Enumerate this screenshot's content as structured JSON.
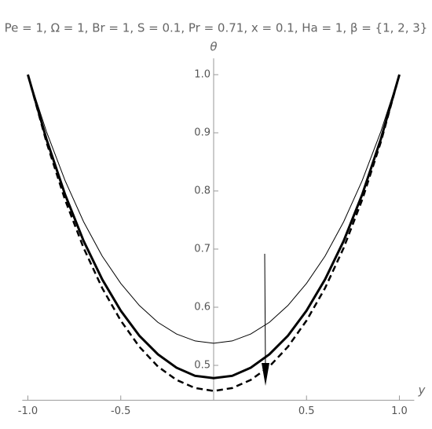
{
  "chart_data": {
    "type": "line",
    "title": "Pe = 1, Ω = 1, Br = 1, S = 0.1, Pr = 0.71, x = 0.1, Ha = 1, β = {1, 2, 3}",
    "x_label": "y",
    "y_label": "θ",
    "x": [
      -1,
      -0.9,
      -0.8,
      -0.7,
      -0.6,
      -0.5,
      -0.4,
      -0.3,
      -0.2,
      -0.1,
      0,
      0.1,
      0.2,
      0.3,
      0.4,
      0.5,
      0.6,
      0.7,
      0.8,
      0.9,
      1
    ],
    "series": [
      {
        "color": "#000000",
        "line_width": 1,
        "dash": false,
        "values": [
          1.0,
          0.902,
          0.818,
          0.747,
          0.688,
          0.641,
          0.603,
          0.574,
          0.554,
          0.542,
          0.538,
          0.542,
          0.554,
          0.574,
          0.603,
          0.641,
          0.688,
          0.747,
          0.818,
          0.902,
          1.0
        ]
      },
      {
        "color": "#000000",
        "line_width": 3,
        "dash": false,
        "values": [
          1.0,
          0.889,
          0.794,
          0.714,
          0.648,
          0.594,
          0.551,
          0.519,
          0.496,
          0.482,
          0.478,
          0.482,
          0.496,
          0.519,
          0.551,
          0.594,
          0.648,
          0.714,
          0.794,
          0.889,
          1.0
        ]
      },
      {
        "color": "#000000",
        "line_width": 2.5,
        "dash": true,
        "values": [
          1.0,
          0.884,
          0.785,
          0.702,
          0.633,
          0.577,
          0.532,
          0.498,
          0.475,
          0.461,
          0.456,
          0.461,
          0.475,
          0.498,
          0.532,
          0.577,
          0.633,
          0.702,
          0.785,
          0.884,
          1.0
        ]
      }
    ],
    "xlim": [
      -1.03,
      1.08
    ],
    "ylim": [
      0.44,
      1.028
    ],
    "xticks": [
      {
        "value": -1,
        "label": "-1.0"
      },
      -0.5,
      0.5,
      {
        "value": 1,
        "label": "1.0"
      }
    ],
    "yticks": [
      0.5,
      0.6,
      0.7,
      0.8,
      0.9,
      {
        "value": 1,
        "label": "1.0"
      }
    ]
  }
}
